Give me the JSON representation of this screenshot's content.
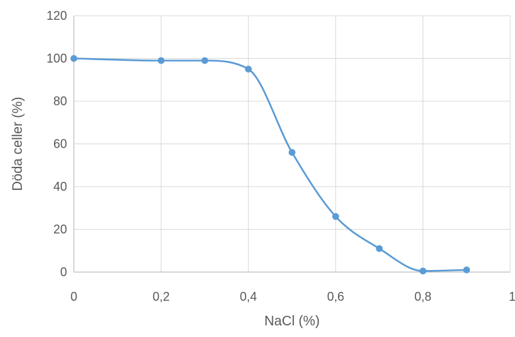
{
  "chart_data": {
    "type": "scatter",
    "title": "",
    "xlabel": "NaCl (%)",
    "ylabel": "Döda celler (%)",
    "xlim": [
      0,
      1
    ],
    "ylim": [
      0,
      120
    ],
    "x_ticks": [
      0,
      0.2,
      0.4,
      0.6,
      0.8,
      1
    ],
    "x_tick_labels": [
      "0",
      "0,2",
      "0,4",
      "0,6",
      "0,8",
      "1"
    ],
    "y_ticks": [
      0,
      20,
      40,
      60,
      80,
      100,
      120
    ],
    "y_tick_labels": [
      "0",
      "20",
      "40",
      "60",
      "80",
      "100",
      "120"
    ],
    "grid": true,
    "legend": "none",
    "smooth_line": true,
    "series": [
      {
        "x": [
          0,
          0.2,
          0.3,
          0.4,
          0.5,
          0.6,
          0.7,
          0.8,
          0.9
        ],
        "y": [
          100,
          99,
          99,
          95,
          56,
          26,
          11,
          0.5,
          1
        ],
        "color": "#5b9bd5"
      }
    ]
  }
}
